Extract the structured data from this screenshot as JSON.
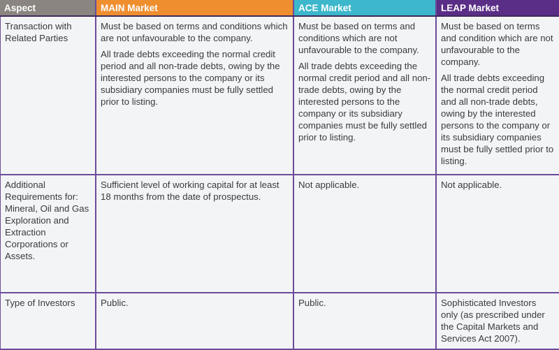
{
  "header": {
    "aspect": "Aspect",
    "main": "MAIN Market",
    "ace": "ACE Market",
    "leap": "LEAP Market"
  },
  "colors": {
    "aspect": "#8a8580",
    "main": "#ef8e2f",
    "ace": "#3cb7cb",
    "leap": "#5a2d86",
    "border": "#6b4c9a"
  },
  "rows": [
    {
      "aspect": "Transaction with Related Parties",
      "main": [
        "Must be based on terms and conditions which are not unfavourable to the company.",
        "All trade debts exceeding the normal credit period and all non-trade debts, owing by the interested persons to the company or its subsidiary companies must be fully settled prior to listing."
      ],
      "ace": [
        "Must be based on terms and conditions which are not unfavourable to the company.",
        "All trade debts exceeding the normal credit period and all non-trade debts, owing by the interested persons to the company or its subsidiary companies must be fully settled prior to listing."
      ],
      "leap": [
        "Must be based on terms and condition which are not unfavourable to the company.",
        "All trade debts exceeding the normal credit period and all non-trade debts, owing by the interested persons to the company or its subsidiary companies must be fully settled prior to listing."
      ]
    },
    {
      "aspect": "Additional Requirements for: Mineral, Oil and Gas Exploration and Extraction Corporations or Assets.",
      "main": "Sufficient level of working capital for at least 18 months from the date of prospectus.",
      "ace": "Not applicable.",
      "leap": "Not applicable."
    },
    {
      "aspect": "Type of Investors",
      "main": "Public.",
      "ace": "Public.",
      "leap": "Sophisticated Investors only (as prescribed under the Capital Markets and Services Act 2007)."
    }
  ]
}
